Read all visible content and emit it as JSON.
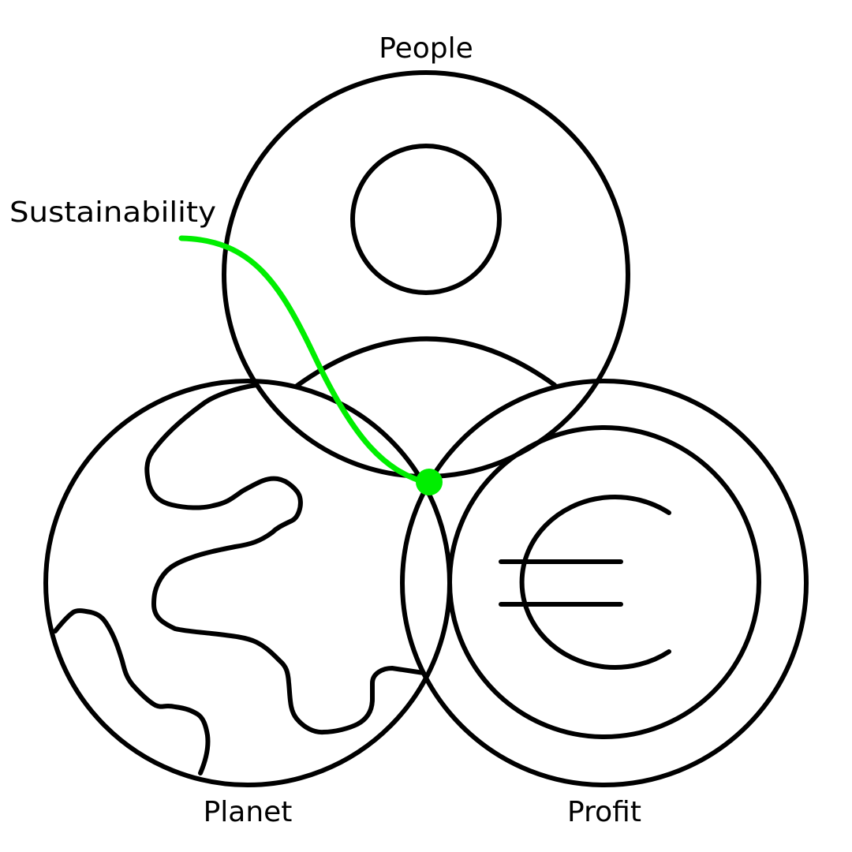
{
  "diagram": {
    "labels": {
      "people": "People",
      "planet": "Planet",
      "profit": "Profit",
      "sustainability": "Sustainability"
    },
    "icons": {
      "people": "person-icon",
      "planet": "globe-icon",
      "profit": "euro-coin-icon"
    }
  },
  "colors": {
    "outline": "#000000",
    "label_text": "#000000",
    "highlight": "#00ee00",
    "background": "#ffffff"
  }
}
